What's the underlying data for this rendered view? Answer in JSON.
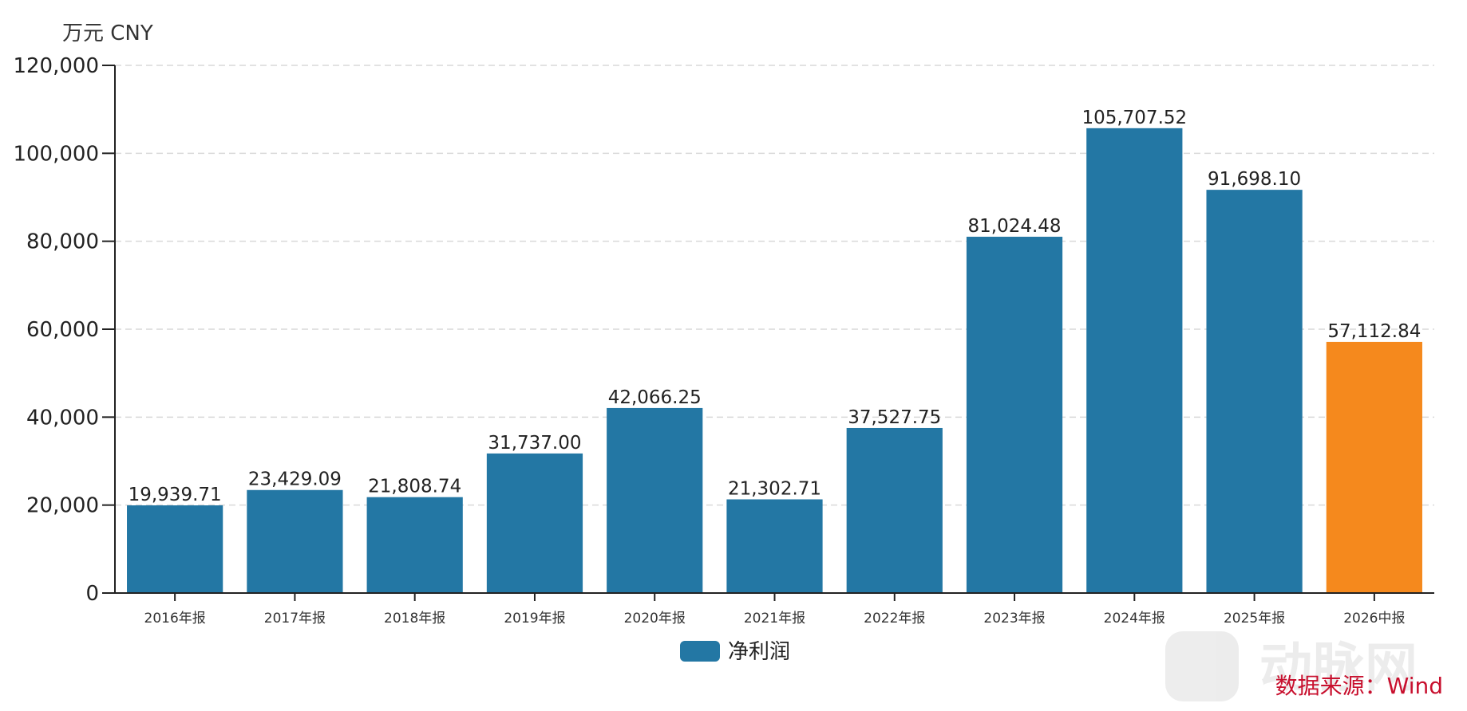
{
  "chart_data": {
    "type": "bar",
    "unit_label": "万元  CNY",
    "categories": [
      "2016年报",
      "2017年报",
      "2018年报",
      "2019年报",
      "2020年报",
      "2021年报",
      "2022年报",
      "2023年报",
      "2024年报",
      "2025年报",
      "2026中报"
    ],
    "series": [
      {
        "name": "净利润",
        "values": [
          19939.71,
          23429.09,
          21808.74,
          31737.0,
          42066.25,
          21302.71,
          37527.75,
          81024.48,
          105707.52,
          91698.1,
          57112.84
        ],
        "value_labels": [
          "19,939.71",
          "23,429.09",
          "21,808.74",
          "31,737.00",
          "42,066.25",
          "21,302.71",
          "37,527.75",
          "81,024.48",
          "105,707.52",
          "91,698.10",
          "57,112.84"
        ]
      }
    ],
    "ylim": [
      0,
      120000
    ],
    "yticks": [
      0,
      20000,
      40000,
      60000,
      80000,
      100000,
      120000
    ],
    "ytick_labels": [
      "0",
      "20,000",
      "40,000",
      "60,000",
      "80,000",
      "100,000",
      "120,000"
    ],
    "grid": true,
    "legend_position": "bottom-center",
    "colors": {
      "bar": "#2377a4",
      "highlight": "#f5891d",
      "axis": "#222222",
      "grid": "#d9d9d9"
    },
    "highlight_index": 10
  },
  "source_text": "数据来源：Wind",
  "watermark_text": "动脉网"
}
